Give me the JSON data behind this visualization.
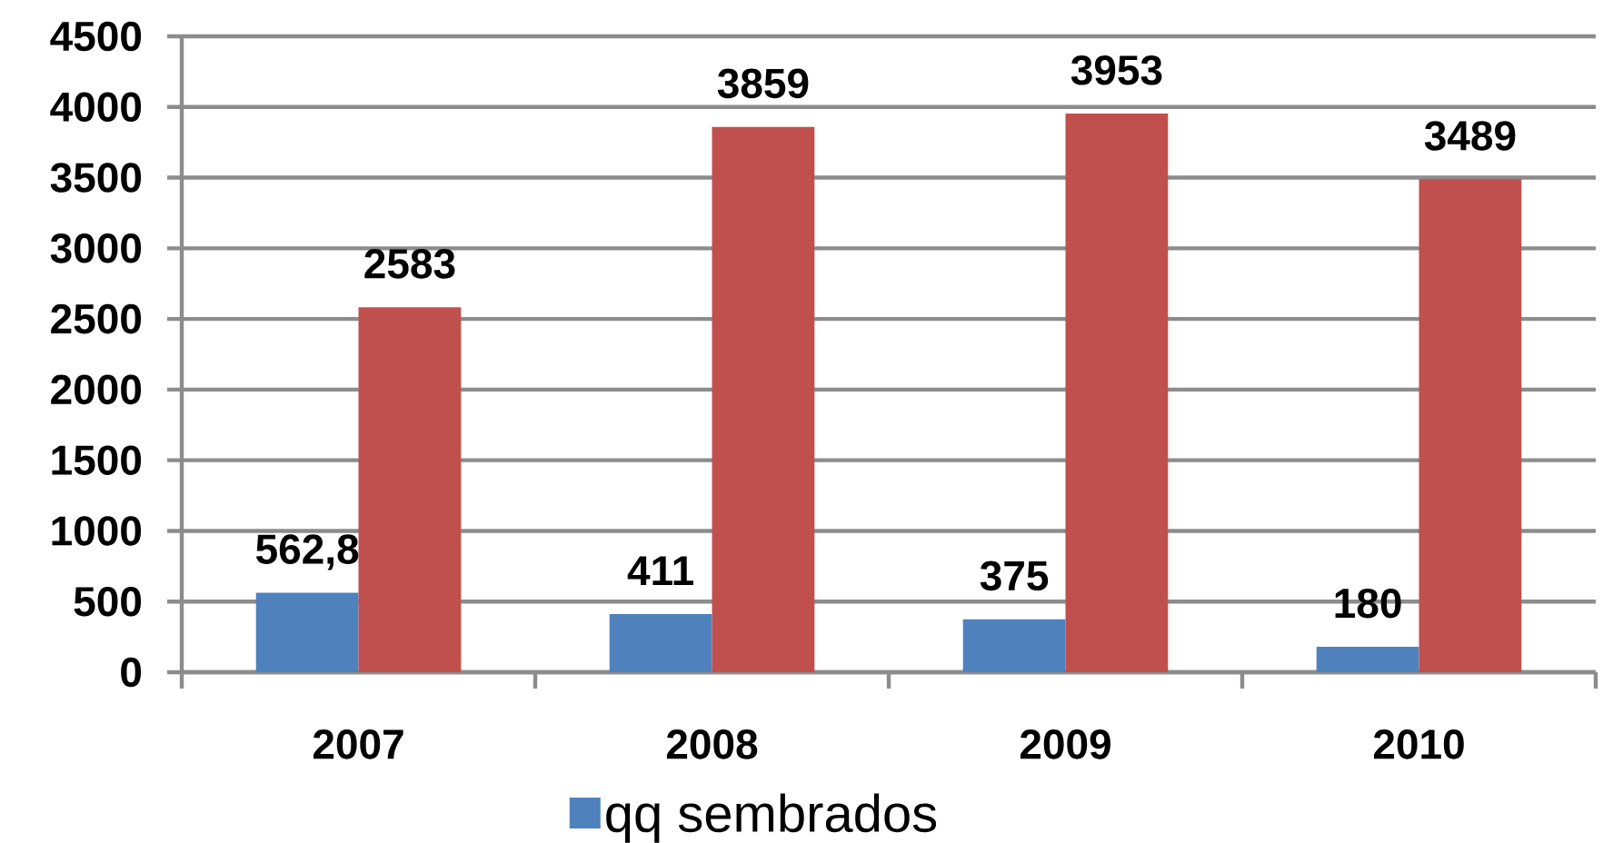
{
  "chart_data": {
    "type": "bar",
    "categories": [
      "2007",
      "2008",
      "2009",
      "2010"
    ],
    "series": [
      {
        "name": "qq sembrados",
        "color": "#4f81bd",
        "values": [
          562.8,
          411,
          375,
          180
        ],
        "value_labels": [
          "562,8",
          "411",
          "375",
          "180"
        ]
      },
      {
        "color": "#c0504d",
        "values": [
          2583,
          3859,
          3953,
          3489
        ],
        "value_labels": [
          "2583",
          "3859",
          "3953",
          "3489"
        ]
      }
    ],
    "ylim": [
      0,
      4500
    ],
    "yticks": [
      0,
      500,
      1000,
      1500,
      2000,
      2500,
      3000,
      3500,
      4000,
      4500
    ],
    "grid": "y",
    "legend": "bottom"
  }
}
